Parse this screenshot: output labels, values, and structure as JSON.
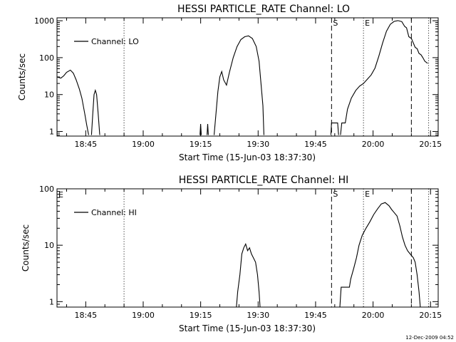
{
  "footer": {
    "timestamp": "12-Dec-2009 04:52"
  },
  "chart_data": [
    {
      "type": "line",
      "title": "HESSI PARTICLE_RATE Channel: LO",
      "xlabel": "Start Time (15-Jun-03 18:37:30)",
      "ylabel": "Counts/sec",
      "y_scale": "log",
      "xlim": [
        "18:37:30",
        "20:17:00"
      ],
      "ylim": [
        0.75,
        1200
      ],
      "x_ticks": [
        "18:45",
        "19:00",
        "19:15",
        "19:30",
        "19:45",
        "20:00",
        "20:15"
      ],
      "y_ticks": [
        "1",
        "10",
        "100",
        "1000"
      ],
      "legend": {
        "position": "top-left",
        "entries": [
          "Channel: LO"
        ]
      },
      "markers": [
        {
          "time": "18:55:00",
          "style": "dotted",
          "label": ""
        },
        {
          "time": "19:49:10",
          "style": "dashed",
          "label": "S"
        },
        {
          "time": "19:57:30",
          "style": "dotted",
          "label": "E"
        },
        {
          "time": "20:10:00",
          "style": "dashed",
          "label": ""
        },
        {
          "time": "20:14:30",
          "style": "dotted",
          "label": ""
        }
      ],
      "series": [
        {
          "name": "Channel: LO",
          "segments": [
            [
              [
                "18:37:30",
                30
              ],
              [
                "18:38:30",
                28
              ],
              [
                "18:39:15",
                32
              ],
              [
                "18:40:00",
                40
              ],
              [
                "18:41:00",
                46
              ],
              [
                "18:41:45",
                38
              ],
              [
                "18:42:30",
                25
              ],
              [
                "18:43:20",
                14
              ],
              [
                "18:44:00",
                8
              ],
              [
                "18:44:45",
                3
              ],
              [
                "18:45:15",
                1.5
              ],
              [
                "18:45:45",
                0.8
              ]
            ],
            [
              [
                "18:46:30",
                0.8
              ],
              [
                "18:46:50",
                3
              ],
              [
                "18:47:10",
                10
              ],
              [
                "18:47:30",
                13
              ],
              [
                "18:47:50",
                10
              ],
              [
                "18:48:15",
                3
              ],
              [
                "18:48:40",
                0.8
              ]
            ],
            [
              [
                "19:14:50",
                0.8
              ],
              [
                "19:15:00",
                1.6
              ],
              [
                "19:15:10",
                0.8
              ]
            ],
            [
              [
                "19:16:40",
                0.8
              ],
              [
                "19:16:50",
                1.6
              ],
              [
                "19:17:00",
                0.8
              ]
            ],
            [
              [
                "19:18:30",
                0.8
              ],
              [
                "19:19:00",
                3
              ],
              [
                "19:19:30",
                12
              ],
              [
                "19:20:00",
                30
              ],
              [
                "19:20:30",
                42
              ],
              [
                "19:21:00",
                25
              ],
              [
                "19:21:45",
                18
              ],
              [
                "19:22:30",
                40
              ],
              [
                "19:23:30",
                100
              ],
              [
                "19:24:30",
                200
              ],
              [
                "19:25:30",
                310
              ],
              [
                "19:26:30",
                370
              ],
              [
                "19:27:30",
                390
              ],
              [
                "19:28:30",
                330
              ],
              [
                "19:29:30",
                200
              ],
              [
                "19:30:15",
                80
              ],
              [
                "19:30:45",
                20
              ],
              [
                "19:31:15",
                5
              ],
              [
                "19:31:30",
                0.8
              ]
            ],
            [
              [
                "19:49:00",
                0.8
              ],
              [
                "19:49:10",
                1.7
              ],
              [
                "19:50:45",
                1.7
              ],
              [
                "19:51:00",
                0.8
              ]
            ],
            [
              [
                "19:51:30",
                0.8
              ],
              [
                "19:51:50",
                1.7
              ],
              [
                "19:52:45",
                1.7
              ],
              [
                "19:53:20",
                4
              ],
              [
                "19:54:20",
                8
              ],
              [
                "19:55:30",
                13
              ],
              [
                "19:56:30",
                17
              ],
              [
                "19:57:30",
                20
              ],
              [
                "19:58:30",
                26
              ],
              [
                "19:59:30",
                34
              ],
              [
                "20:00:30",
                52
              ],
              [
                "20:01:30",
                110
              ],
              [
                "20:02:30",
                250
              ],
              [
                "20:03:30",
                520
              ],
              [
                "20:04:30",
                800
              ],
              [
                "20:05:30",
                960
              ],
              [
                "20:06:30",
                1010
              ],
              [
                "20:07:30",
                950
              ],
              [
                "20:08:15",
                700
              ],
              [
                "20:08:45",
                640
              ],
              [
                "20:09:20",
                370
              ],
              [
                "20:10:00",
                330
              ],
              [
                "20:10:30",
                250
              ],
              [
                "20:11:00",
                190
              ],
              [
                "20:11:30",
                175
              ],
              [
                "20:12:00",
                130
              ],
              [
                "20:12:30",
                120
              ],
              [
                "20:13:00",
                100
              ],
              [
                "20:13:30",
                80
              ],
              [
                "20:14:15",
                70
              ]
            ]
          ]
        }
      ]
    },
    {
      "type": "line",
      "title": "HESSI PARTICLE_RATE Channel: HI",
      "xlabel": "Start Time (15-Jun-03 18:37:30)",
      "ylabel": "Counts/sec",
      "y_scale": "log",
      "xlim": [
        "18:37:30",
        "20:17:00"
      ],
      "ylim": [
        0.8,
        100
      ],
      "x_ticks": [
        "18:45",
        "19:00",
        "19:15",
        "19:30",
        "19:45",
        "20:00",
        "20:15"
      ],
      "y_ticks": [
        "1",
        "10",
        "100"
      ],
      "legend": {
        "position": "top-left",
        "entries": [
          "Channel: HI"
        ]
      },
      "corner_label": "E",
      "markers": [
        {
          "time": "18:55:00",
          "style": "dotted",
          "label": ""
        },
        {
          "time": "19:49:10",
          "style": "dashed",
          "label": "S"
        },
        {
          "time": "19:57:30",
          "style": "dotted",
          "label": "E"
        },
        {
          "time": "20:10:00",
          "style": "dashed",
          "label": ""
        },
        {
          "time": "20:14:30",
          "style": "dotted",
          "label": ""
        }
      ],
      "series": [
        {
          "name": "Channel: HI",
          "segments": [
            [
              [
                "19:24:20",
                0.8
              ],
              [
                "19:24:40",
                1.5
              ],
              [
                "19:25:15",
                3
              ],
              [
                "19:25:45",
                7
              ],
              [
                "19:26:15",
                9
              ],
              [
                "19:26:45",
                10.5
              ],
              [
                "19:27:15",
                8
              ],
              [
                "19:27:45",
                9
              ],
              [
                "19:28:15",
                7
              ],
              [
                "19:28:45",
                6
              ],
              [
                "19:29:20",
                5
              ],
              [
                "19:29:50",
                3
              ],
              [
                "19:30:15",
                1.5
              ],
              [
                "19:30:30",
                0.8
              ]
            ],
            [
              [
                "19:51:20",
                0.8
              ],
              [
                "19:51:40",
                1.8
              ],
              [
                "19:53:50",
                1.8
              ],
              [
                "19:54:10",
                2.5
              ],
              [
                "19:55:00",
                4
              ],
              [
                "19:55:40",
                6
              ],
              [
                "19:56:20",
                10
              ],
              [
                "19:57:10",
                15
              ],
              [
                "19:58:10",
                20
              ],
              [
                "19:59:10",
                26
              ],
              [
                "20:00:10",
                35
              ],
              [
                "20:01:10",
                44
              ],
              [
                "20:02:10",
                54
              ],
              [
                "20:03:10",
                57
              ],
              [
                "20:04:10",
                50
              ],
              [
                "20:04:50",
                43
              ],
              [
                "20:05:30",
                38
              ],
              [
                "20:06:15",
                33
              ],
              [
                "20:07:00",
                22
              ],
              [
                "20:07:40",
                14
              ],
              [
                "20:08:20",
                10
              ],
              [
                "20:09:00",
                8
              ],
              [
                "20:09:40",
                7
              ],
              [
                "20:10:30",
                6
              ],
              [
                "20:11:00",
                5
              ],
              [
                "20:11:30",
                3
              ],
              [
                "20:12:00",
                1.5
              ],
              [
                "20:12:20",
                0.8
              ]
            ]
          ]
        }
      ]
    }
  ]
}
